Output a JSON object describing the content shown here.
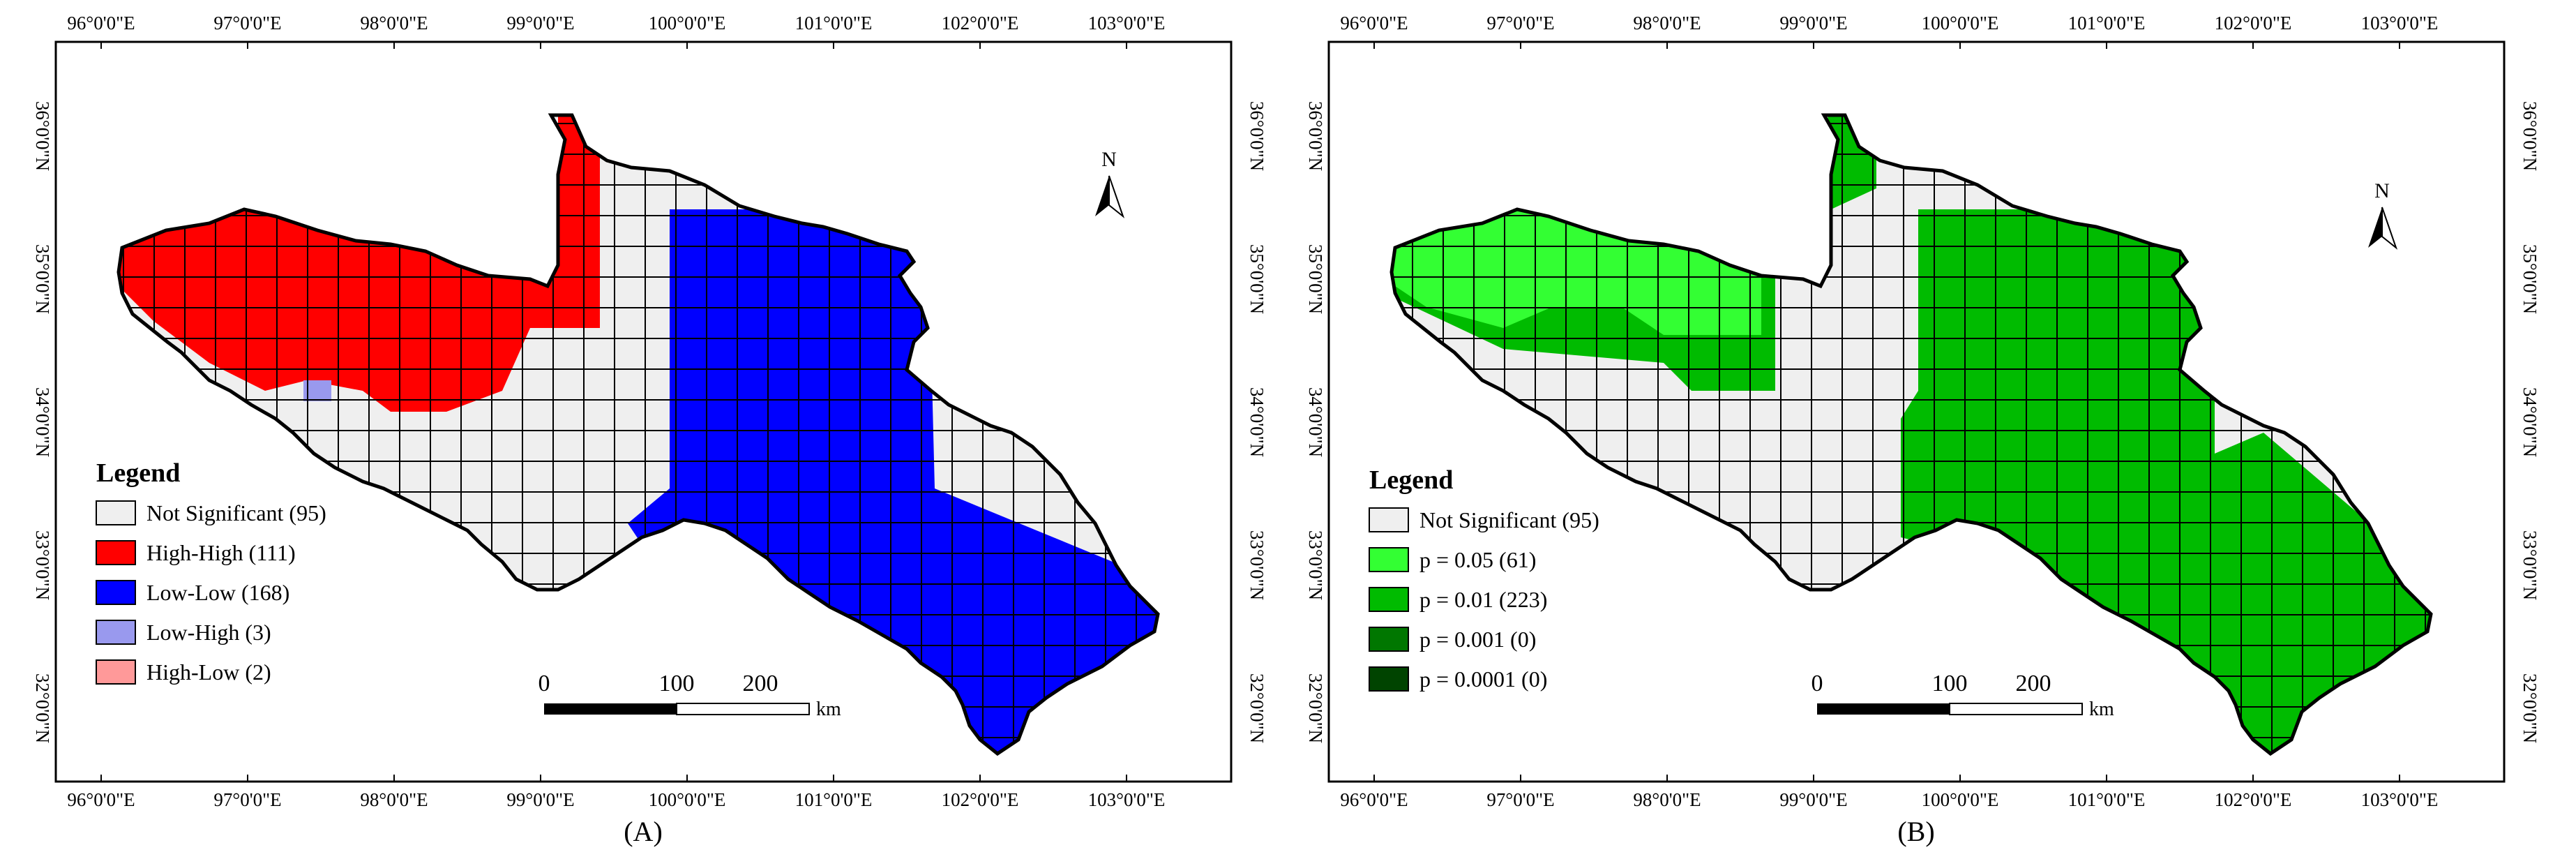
{
  "panels": [
    {
      "id": "A",
      "caption": "(A)",
      "legend": {
        "title": "Legend",
        "items": [
          {
            "label": "Not Significant (95)",
            "color": "#efefef"
          },
          {
            "label": "High-High (111)",
            "color": "#ff0000"
          },
          {
            "label": "Low-Low (168)",
            "color": "#0000ff"
          },
          {
            "label": "Low-High (3)",
            "color": "#9999ee"
          },
          {
            "label": "High-Low (2)",
            "color": "#ff9999"
          }
        ]
      },
      "zones": [
        {
          "name": "Not Significant",
          "color": "#efefef"
        },
        {
          "name": "High-High",
          "color": "#ff0000"
        },
        {
          "name": "Low-Low",
          "color": "#0000ff"
        },
        {
          "name": "Low-High",
          "color": "#9999ee"
        }
      ]
    },
    {
      "id": "B",
      "caption": "(B)",
      "legend": {
        "title": "Legend",
        "items": [
          {
            "label": "Not Significant (95)",
            "color": "#efefef"
          },
          {
            "label": "p = 0.05 (61)",
            "color": "#33ff33"
          },
          {
            "label": "p = 0.01 (223)",
            "color": "#00bb00"
          },
          {
            "label": "p = 0.001 (0)",
            "color": "#007700"
          },
          {
            "label": "p = 0.0001 (0)",
            "color": "#004400"
          }
        ]
      },
      "zones": [
        {
          "name": "Not Significant",
          "color": "#efefef"
        },
        {
          "name": "p = 0.05",
          "color": "#33ff33"
        },
        {
          "name": "p = 0.01",
          "color": "#00bb00"
        }
      ]
    }
  ],
  "axes": {
    "lon_labels": [
      "96°0'0\"E",
      "97°0'0\"E",
      "98°0'0\"E",
      "99°0'0\"E",
      "100°0'0\"E",
      "101°0'0\"E",
      "102°0'0\"E",
      "103°0'0\"E"
    ],
    "lat_labels": [
      "36°0'0\"N",
      "35°0'0\"N",
      "34°0'0\"N",
      "33°0'0\"N",
      "32°0'0\"N"
    ]
  },
  "scale_bar": {
    "ticks": [
      "0",
      "100",
      "200"
    ],
    "unit": "km"
  },
  "north_arrow": {
    "label": "N"
  }
}
